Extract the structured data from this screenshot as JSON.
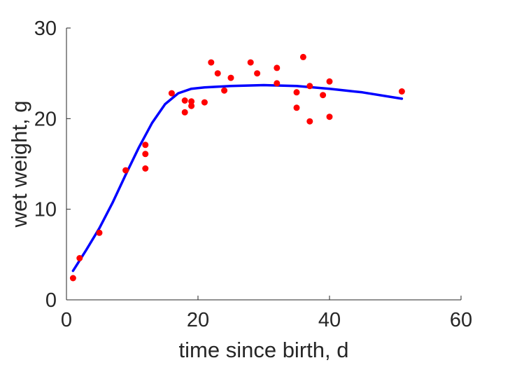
{
  "chart_data": {
    "type": "scatter",
    "title": "",
    "xlabel": "time since birth, d",
    "ylabel": "wet weight, g",
    "xlim": [
      0,
      60
    ],
    "ylim": [
      0,
      30
    ],
    "xticks": [
      "0",
      "20",
      "40",
      "60"
    ],
    "yticks": [
      "0",
      "10",
      "20",
      "30"
    ],
    "xtick_values": [
      0,
      20,
      40,
      60
    ],
    "ytick_values": [
      0,
      10,
      20,
      30
    ],
    "grid": false,
    "series": [
      {
        "kind": "scatter",
        "color": "#ff0000",
        "points": [
          [
            1,
            2.4
          ],
          [
            2,
            4.6
          ],
          [
            5,
            7.4
          ],
          [
            9,
            14.3
          ],
          [
            12,
            14.5
          ],
          [
            12,
            16.1
          ],
          [
            12,
            17.1
          ],
          [
            16,
            22.8
          ],
          [
            18,
            20.7
          ],
          [
            18,
            22.0
          ],
          [
            19,
            21.4
          ],
          [
            19,
            21.9
          ],
          [
            21,
            21.8
          ],
          [
            22,
            26.2
          ],
          [
            23,
            25.0
          ],
          [
            24,
            23.1
          ],
          [
            25,
            24.5
          ],
          [
            28,
            26.2
          ],
          [
            29,
            25.0
          ],
          [
            32,
            23.9
          ],
          [
            32,
            25.6
          ],
          [
            35,
            21.2
          ],
          [
            35,
            22.9
          ],
          [
            36,
            26.8
          ],
          [
            37,
            19.7
          ],
          [
            37,
            23.6
          ],
          [
            39,
            22.6
          ],
          [
            40,
            20.2
          ],
          [
            40,
            24.1
          ],
          [
            51,
            23.0
          ]
        ]
      },
      {
        "kind": "line",
        "color": "#0000ff",
        "points": [
          [
            1,
            3.2
          ],
          [
            3,
            5.5
          ],
          [
            5,
            7.9
          ],
          [
            7,
            10.7
          ],
          [
            9,
            13.8
          ],
          [
            11,
            16.8
          ],
          [
            13,
            19.5
          ],
          [
            15,
            21.6
          ],
          [
            17,
            22.8
          ],
          [
            19,
            23.3
          ],
          [
            21,
            23.45
          ],
          [
            25,
            23.6
          ],
          [
            30,
            23.7
          ],
          [
            35,
            23.6
          ],
          [
            40,
            23.3
          ],
          [
            45,
            22.9
          ],
          [
            51,
            22.2
          ]
        ]
      }
    ]
  }
}
